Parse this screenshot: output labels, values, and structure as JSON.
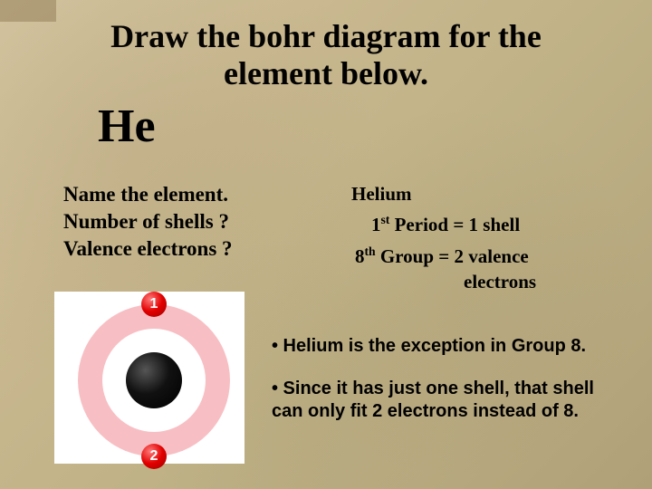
{
  "title_line1": "Draw the bohr diagram for the",
  "title_line2": "element below.",
  "element_symbol": "He",
  "questions": {
    "q1": "Name the element.",
    "q2": "Number of shells ?",
    "q3": "Valence electrons ?"
  },
  "answers": {
    "name": "Helium",
    "shells_pre": "1",
    "shells_sup": "st",
    "shells_post": " Period = 1 shell",
    "valence_pre": "8",
    "valence_sup": "th",
    "valence_post": " Group = 2 valence",
    "valence_line2": "electrons"
  },
  "bullets": {
    "b1": "• Helium is the exception in Group 8.",
    "b2": "• Since it has just one shell, that shell can only fit 2 electrons instead of 8."
  },
  "diagram": {
    "electron_labels": [
      "1",
      "2"
    ],
    "ring_color": "#f7bfc4",
    "nucleus_color": "#000000",
    "electron_color": "#e20000",
    "background": "#ffffff"
  },
  "colors": {
    "page_bg": "#c9b88f",
    "text": "#000000"
  }
}
